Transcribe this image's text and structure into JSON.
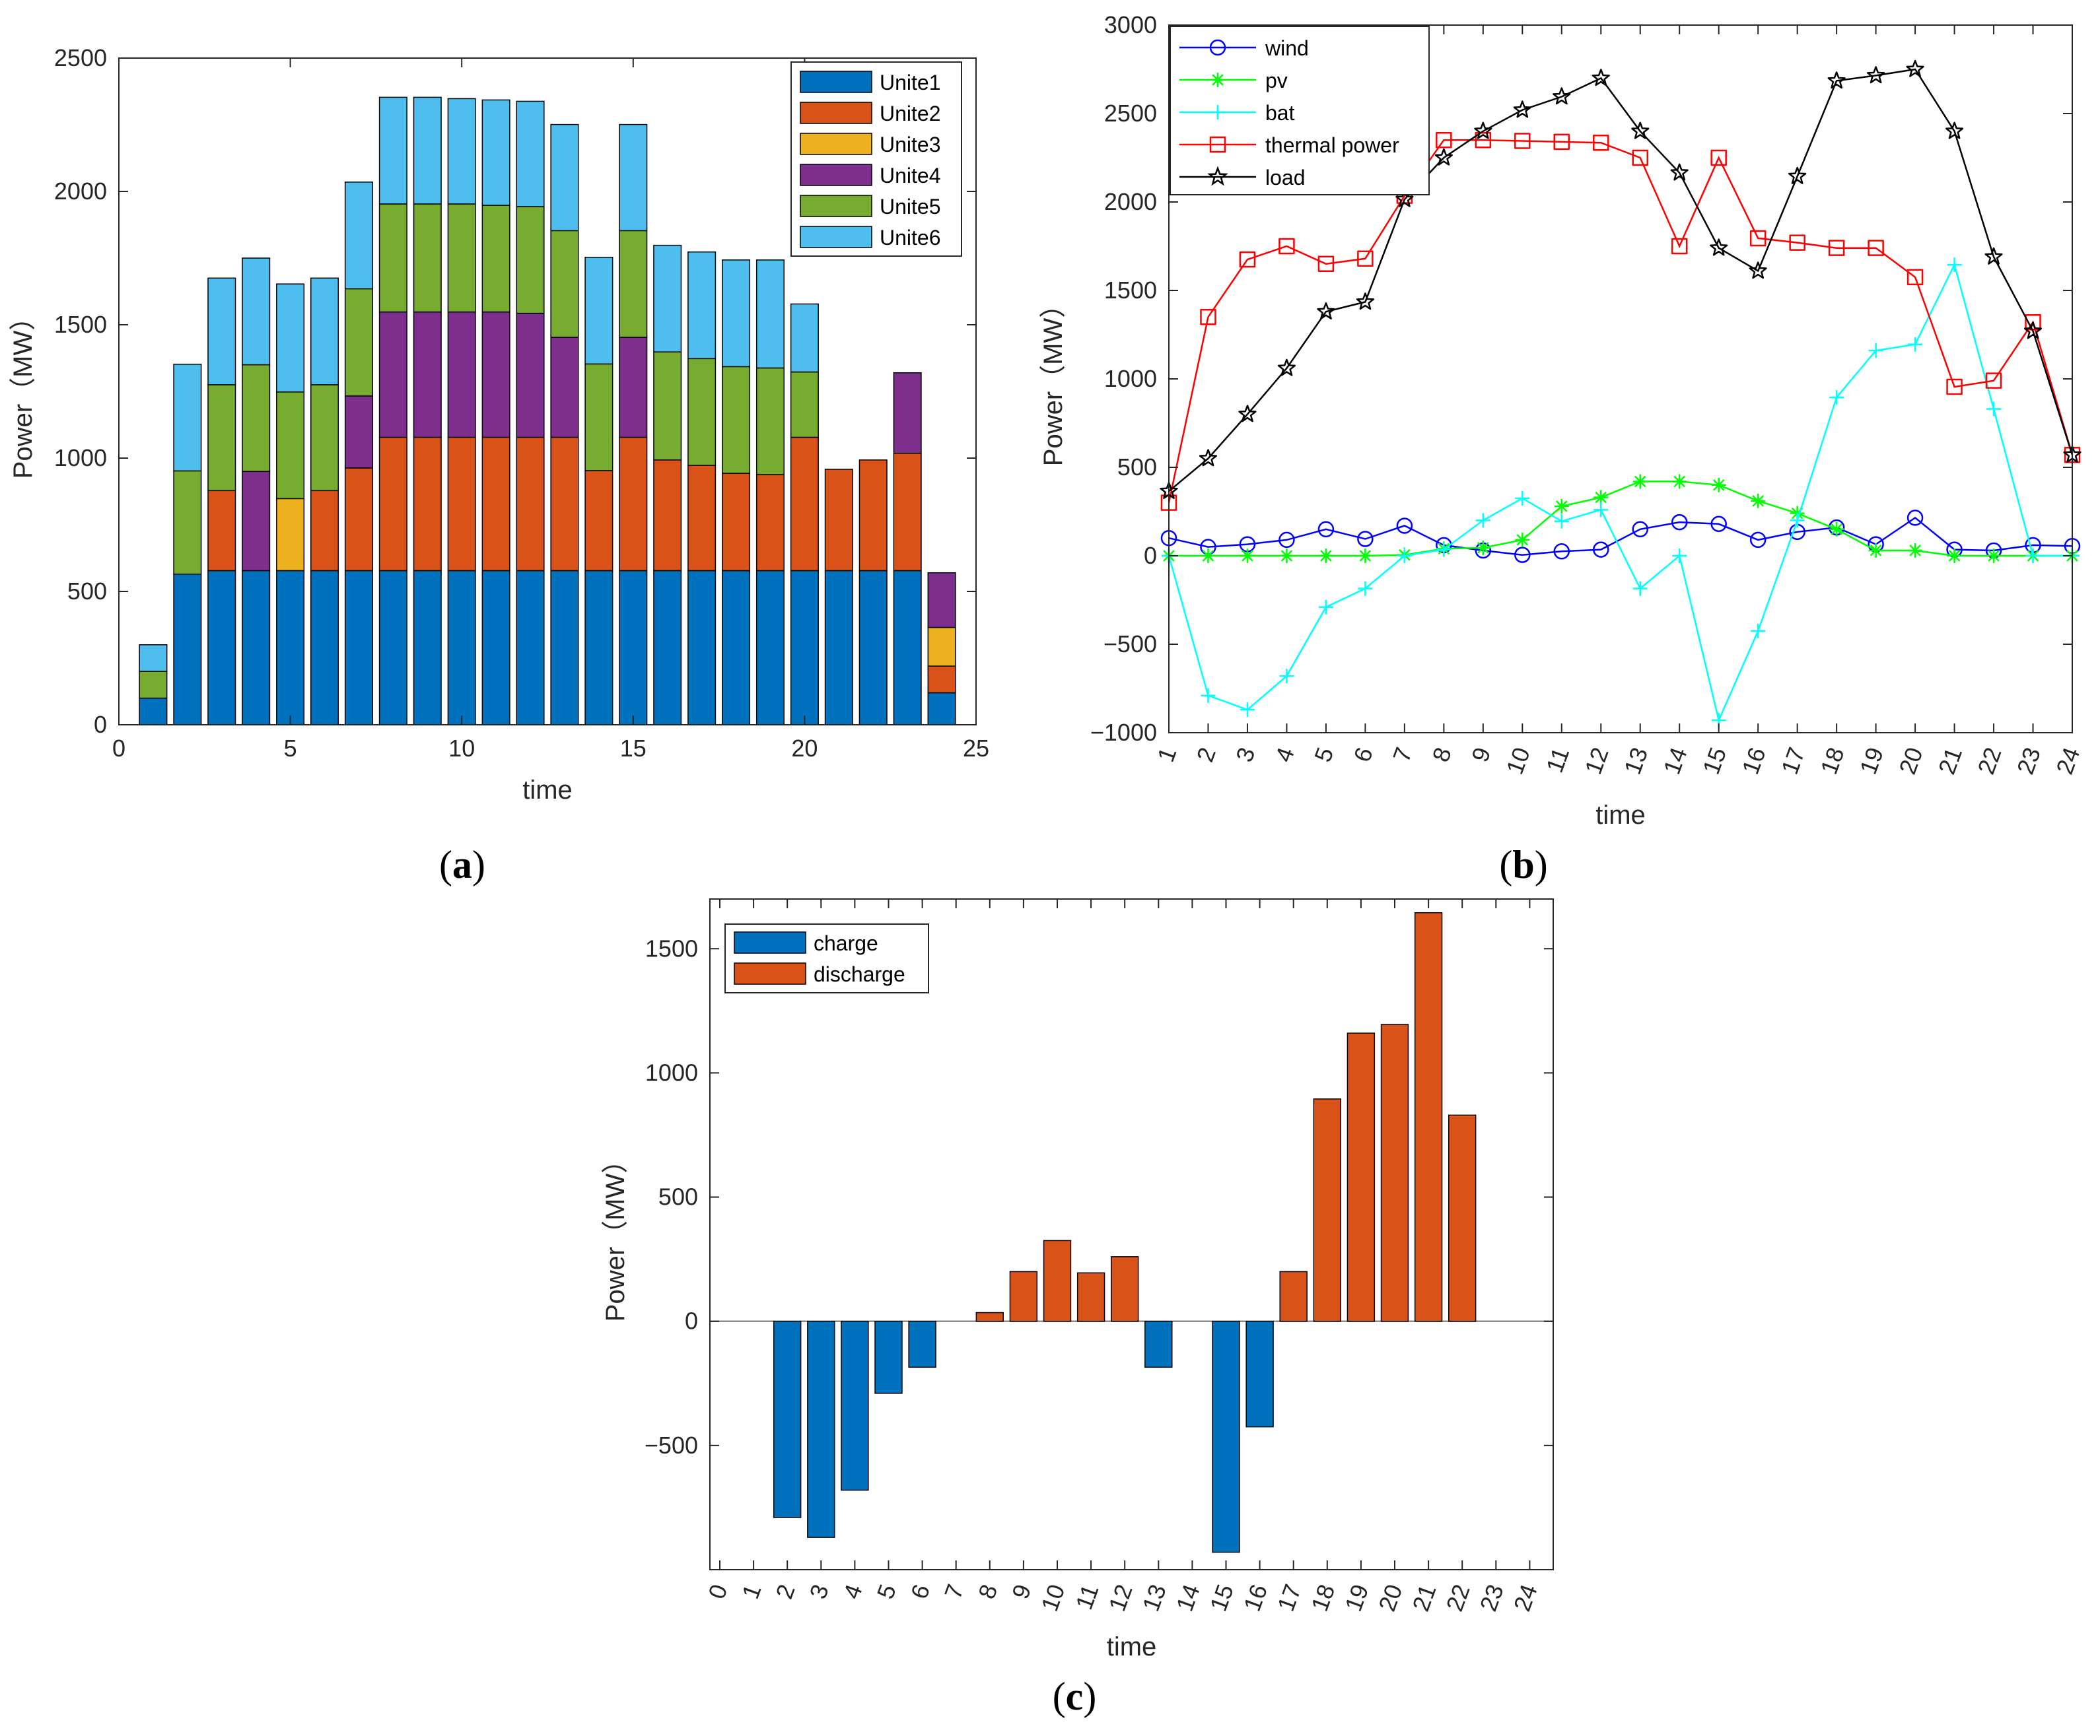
{
  "chart_data": [
    {
      "panel": "(a)",
      "type": "bar",
      "stacked": true,
      "title": "",
      "xlabel": "time",
      "ylabel": "Power（MW）",
      "xlim": [
        0,
        25
      ],
      "ylim": [
        0,
        2500
      ],
      "xticks": [
        "0",
        "5",
        "10",
        "15",
        "20",
        "25"
      ],
      "yticks": [
        "0",
        "500",
        "1000",
        "1500",
        "2000",
        "2500"
      ],
      "legend_position": "top-right",
      "categories": [
        1,
        2,
        3,
        4,
        5,
        6,
        7,
        8,
        9,
        10,
        11,
        12,
        13,
        14,
        15,
        16,
        17,
        18,
        19,
        20,
        21,
        22,
        23,
        24
      ],
      "series": [
        {
          "name": "Unite1",
          "color": "#0072BD",
          "values": [
            100,
            565,
            578,
            578,
            578,
            578,
            578,
            578,
            578,
            578,
            578,
            578,
            578,
            578,
            578,
            578,
            578,
            578,
            578,
            578,
            578,
            578,
            578,
            120
          ]
        },
        {
          "name": "Unite2",
          "color": "#D95319",
          "values": [
            0,
            0,
            300,
            0,
            0,
            300,
            385,
            500,
            500,
            500,
            500,
            500,
            500,
            375,
            500,
            415,
            395,
            365,
            360,
            500,
            380,
            415,
            440,
            100
          ]
        },
        {
          "name": "Unite3",
          "color": "#EDB120",
          "values": [
            0,
            0,
            0,
            0,
            270,
            0,
            0,
            0,
            0,
            0,
            0,
            0,
            0,
            0,
            0,
            0,
            0,
            0,
            0,
            0,
            0,
            0,
            0,
            145
          ]
        },
        {
          "name": "Unite4",
          "color": "#7E2F8E",
          "values": [
            0,
            0,
            0,
            372,
            0,
            0,
            270,
            470,
            470,
            470,
            470,
            465,
            375,
            0,
            375,
            0,
            0,
            0,
            0,
            0,
            0,
            0,
            302,
            205
          ]
        },
        {
          "name": "Unite5",
          "color": "#77AC30",
          "values": [
            100,
            387,
            397,
            400,
            400,
            397,
            402,
            405,
            405,
            405,
            400,
            400,
            400,
            400,
            400,
            405,
            400,
            400,
            400,
            245,
            0,
            0,
            0,
            0
          ]
        },
        {
          "name": "Unite6",
          "color": "#4DBEEE",
          "values": [
            100,
            400,
            400,
            400,
            405,
            400,
            400,
            400,
            400,
            395,
            395,
            395,
            398,
            400,
            398,
            400,
            400,
            400,
            405,
            255,
            0,
            0,
            0,
            0
          ]
        }
      ]
    },
    {
      "panel": "(b)",
      "type": "line",
      "title": "",
      "xlabel": "time",
      "ylabel": "Power（MW）",
      "ylim": [
        -1000,
        3000
      ],
      "yticks": [
        "−1000",
        "−500",
        "0",
        "500",
        "1000",
        "1500",
        "2000",
        "2500",
        "3000"
      ],
      "categories": [
        "1",
        "2",
        "3",
        "4",
        "5",
        "6",
        "7",
        "8",
        "9",
        "10",
        "11",
        "12",
        "13",
        "14",
        "15",
        "16",
        "17",
        "18",
        "19",
        "20",
        "21",
        "22",
        "23",
        "24"
      ],
      "legend_position": "top-left",
      "series": [
        {
          "name": "wind",
          "color": "#0000FF",
          "marker": "circle",
          "values": [
            100,
            50,
            65,
            90,
            150,
            95,
            170,
            60,
            30,
            5,
            25,
            35,
            150,
            190,
            180,
            90,
            135,
            160,
            65,
            215,
            35,
            30,
            60,
            55
          ]
        },
        {
          "name": "pv",
          "color": "#00FF00",
          "marker": "asterisk",
          "values": [
            0,
            0,
            0,
            0,
            0,
            0,
            5,
            40,
            45,
            90,
            280,
            330,
            420,
            420,
            400,
            310,
            240,
            150,
            30,
            30,
            0,
            0,
            0,
            0
          ]
        },
        {
          "name": "bat",
          "color": "#00FFFF",
          "marker": "plus",
          "values": [
            0,
            -790,
            -870,
            -680,
            -290,
            -185,
            0,
            35,
            200,
            325,
            195,
            260,
            -185,
            0,
            -930,
            -425,
            200,
            895,
            1160,
            1195,
            1645,
            830,
            0,
            0
          ]
        },
        {
          "name": "thermal power",
          "color": "#FF0000",
          "marker": "square",
          "values": [
            300,
            1350,
            1675,
            1750,
            1650,
            1680,
            2035,
            2350,
            2350,
            2345,
            2340,
            2335,
            2250,
            1750,
            2250,
            1795,
            1770,
            1740,
            1740,
            1575,
            955,
            990,
            1320,
            570
          ]
        },
        {
          "name": "load",
          "color": "#000000",
          "marker": "pentagram",
          "values": [
            365,
            550,
            800,
            1060,
            1380,
            1435,
            2015,
            2250,
            2400,
            2520,
            2595,
            2700,
            2400,
            2165,
            1740,
            1610,
            2145,
            2685,
            2715,
            2750,
            2400,
            1690,
            1270,
            570
          ]
        }
      ]
    },
    {
      "panel": "(c)",
      "type": "bar",
      "title": "",
      "xlabel": "time",
      "ylabel": "Power（MW）",
      "ylim": [
        -1000,
        1700
      ],
      "yticks": [
        "−500",
        "0",
        "500",
        "1000",
        "1500"
      ],
      "categories": [
        "0",
        "1",
        "2",
        "3",
        "4",
        "5",
        "6",
        "7",
        "8",
        "9",
        "10",
        "11",
        "12",
        "13",
        "14",
        "15",
        "16",
        "17",
        "18",
        "19",
        "20",
        "21",
        "22",
        "23",
        "24"
      ],
      "legend_position": "top-left",
      "series": [
        {
          "name": "charge",
          "color": "#0072BD",
          "values": [
            0,
            0,
            -790,
            -870,
            -680,
            -290,
            -185,
            0,
            0,
            0,
            0,
            0,
            0,
            -185,
            0,
            -930,
            -425,
            0,
            0,
            0,
            0,
            0,
            0,
            0,
            0
          ]
        },
        {
          "name": "discharge",
          "color": "#D95319",
          "values": [
            0,
            0,
            0,
            0,
            0,
            0,
            0,
            0,
            35,
            200,
            325,
            195,
            260,
            0,
            0,
            0,
            0,
            200,
            895,
            1160,
            1195,
            1645,
            830,
            0,
            0
          ]
        }
      ]
    }
  ],
  "captions": {
    "a": "(a)",
    "b": "(b)",
    "c": "(c)"
  }
}
